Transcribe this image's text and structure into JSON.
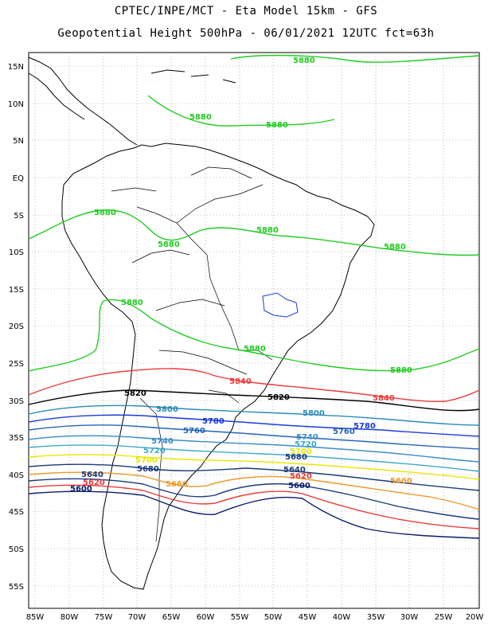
{
  "title_line1": "CPTEC/INPE/MCT -  Eta Model 15km - GFS",
  "title_line2": "Geopotential Height 500hPa - 06/01/2021 12UTC fct=63h",
  "lat_labels": [
    "15N",
    "10N",
    "5N",
    "EQ",
    "5S",
    "10S",
    "15S",
    "20S",
    "25S",
    "30S",
    "35S",
    "40S",
    "45S",
    "50S",
    "55S"
  ],
  "lon_labels": [
    "85W",
    "80W",
    "75W",
    "70W",
    "65W",
    "60W",
    "55W",
    "50W",
    "45W",
    "40W",
    "35W",
    "30W",
    "25W",
    "20W"
  ],
  "contours": {
    "c5880": "5880",
    "c5840": "5840",
    "c5820": "5820",
    "c5800": "5800",
    "c5780": "5780",
    "c5760": "5760",
    "c5740": "5740",
    "c5720": "5720",
    "c5700": "5700",
    "c5680": "5680",
    "c5660": "5660",
    "c5640": "5640",
    "c5620": "5620",
    "c5600": "5600"
  },
  "colors": {
    "c5880": "#22cc22",
    "c5840": "#e83c3c",
    "c5820": "#000000",
    "c5800": "#2a8ab8",
    "c5780": "#1a3cd8",
    "c5760": "#2466b8",
    "c5740": "#3a8cc8",
    "c5720": "#40a8c8",
    "c5700": "#e8e800",
    "c5680": "#1a3a78",
    "c5660": "#e89a2a",
    "c5640": "#1a3a78",
    "c5620": "#e83c3c",
    "c5600": "#0a1e6a",
    "land": "#000000",
    "grid": "#888888"
  }
}
